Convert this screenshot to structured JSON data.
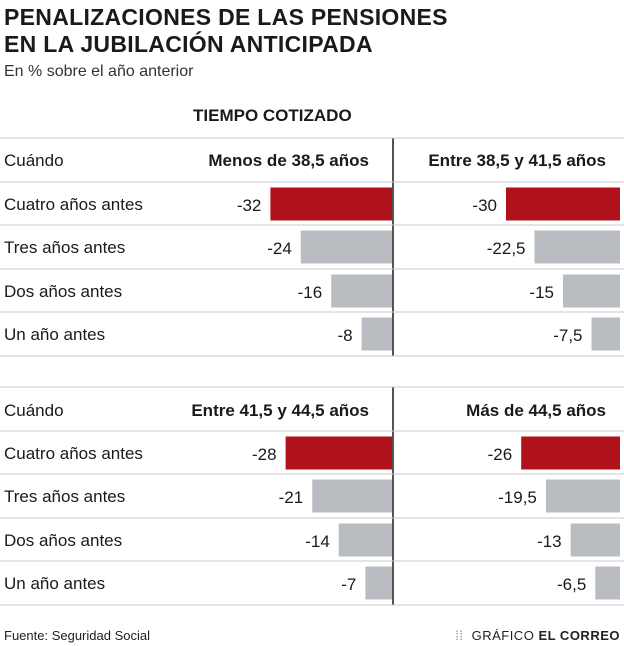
{
  "title_line1": "PENALIZACIONES DE LAS PENSIONES",
  "title_line2": "EN LA JUBILACIÓN ANTICIPADA",
  "subtitle": "En % sobre el año anterior",
  "section_header": "TIEMPO COTIZADO",
  "row_header": "Cuándo",
  "footer": {
    "source": "Fuente: Seguridad Social",
    "credit_prefix": "GRÁFICO",
    "credit_brand": "EL CORREO"
  },
  "colors": {
    "highlight": "#b0121b",
    "default": "#b9bcc1",
    "rule": "#c8c8c8",
    "divider": "#1a1a1a"
  },
  "chart_data": {
    "type": "bar",
    "categories": [
      "Cuatro años antes",
      "Tres años antes",
      "Dos años antes",
      "Un año antes"
    ],
    "panels": [
      {
        "name": "Menos de 38,5 años",
        "values": [
          -32,
          -24,
          -16,
          -8
        ],
        "labels": [
          "-32",
          "-24",
          "-16",
          "-8"
        ]
      },
      {
        "name": "Entre 38,5 y 41,5 años",
        "values": [
          -30,
          -22.5,
          -15,
          -7.5
        ],
        "labels": [
          "-30",
          "-22,5",
          "-15",
          "-7,5"
        ]
      },
      {
        "name": "Entre 41,5 y 44,5 años",
        "values": [
          -28,
          -21,
          -14,
          -7
        ],
        "labels": [
          "-28",
          "-21",
          "-14",
          "-7"
        ]
      },
      {
        "name": "Más de 44,5 años",
        "values": [
          -26,
          -19.5,
          -13,
          -6.5
        ],
        "labels": [
          "-26",
          "-19,5",
          "-13",
          "-6,5"
        ]
      }
    ],
    "highlight_category": "Cuatro años antes"
  }
}
